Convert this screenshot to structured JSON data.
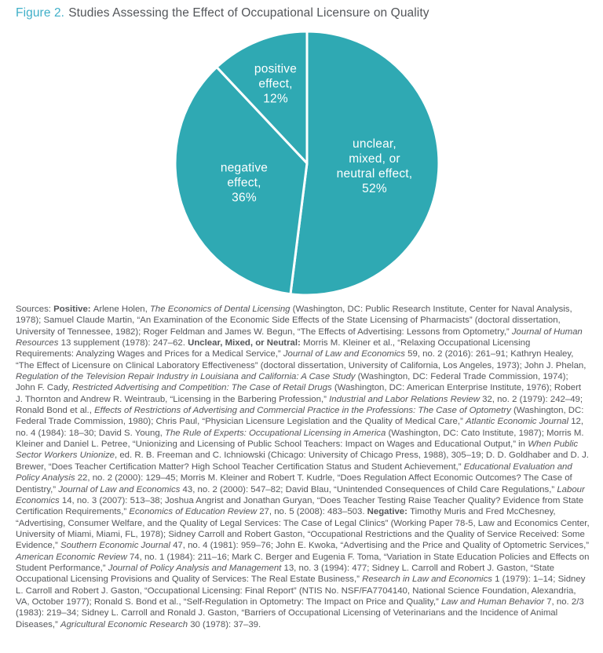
{
  "title": {
    "prefix": "Figure 2.",
    "rest": "Studies Assessing the Effect of Occupational Licensure on Quality"
  },
  "colors": {
    "title_prefix": "#3fafc8",
    "title_text": "#53565a",
    "body_text": "#54565a",
    "pie_fill": "#2fa9b3",
    "pie_separator": "#ffffff",
    "pie_label_text": "#ffffff"
  },
  "chart_data": {
    "type": "pie",
    "title": "Studies Assessing the Effect of Occupational Licensure on Quality",
    "start_angle_deg": 0,
    "direction": "clockwise",
    "fill": "#2fa9b3",
    "separator": "#ffffff",
    "legend_position": "none",
    "slices": [
      {
        "label": "unclear, mixed, or neutral effect",
        "value": 52,
        "display": "unclear,\nmixed, or\nneutral effect,\n52%"
      },
      {
        "label": "negative effect",
        "value": 36,
        "display": "negative\neffect,\n36%"
      },
      {
        "label": "positive effect",
        "value": 12,
        "display": "positive\neffect,\n12%"
      }
    ]
  },
  "sources": {
    "segments": [
      {
        "s": "n",
        "t": "Sources: "
      },
      {
        "s": "b",
        "t": "Positive: "
      },
      {
        "s": "n",
        "t": "Arlene Holen, "
      },
      {
        "s": "i",
        "t": "The Economics of Dental Licensing"
      },
      {
        "s": "n",
        "t": " (Washington, DC: Public Research Institute, Center for Naval Analysis, 1978); Samuel Claude Martin, “An Examination of the Economic Side Effects of the State Licensing of Pharmacists” (doctoral dissertation, University of Tennessee, 1982); Roger Feldman and James W. Begun, “The Effects of Advertising: Lessons from Optometry,” "
      },
      {
        "s": "i",
        "t": "Journal of Human Resources"
      },
      {
        "s": "n",
        "t": " 13 supplement (1978): 247–62. "
      },
      {
        "s": "b",
        "t": "Unclear, Mixed, or Neutral: "
      },
      {
        "s": "n",
        "t": "Morris M. Kleiner et al., “Relaxing Occupational Licensing Requirements: Analyzing Wages and Prices for a Medical Service,” "
      },
      {
        "s": "i",
        "t": "Journal of Law and Economics"
      },
      {
        "s": "n",
        "t": " 59, no. 2 (2016): 261–91; Kathryn Healey, “The Effect of Licensure on Clinical Laboratory Effectiveness” (doctoral dissertation, University of California, Los Angeles, 1973); John J. Phelan, "
      },
      {
        "s": "i",
        "t": "Regulation of the Television Repair Industry in Louisiana and California: A Case Study"
      },
      {
        "s": "n",
        "t": " (Washington, DC: Federal Trade Commission, 1974); John F. Cady, "
      },
      {
        "s": "i",
        "t": "Restricted Advertising and Competition: The Case of Retail Drugs"
      },
      {
        "s": "n",
        "t": " (Washington, DC: American Enterprise Institute, 1976); Robert J. Thornton and Andrew R. Weintraub, “Licensing in the Barbering Profession,” "
      },
      {
        "s": "i",
        "t": "Industrial and Labor Relations Review"
      },
      {
        "s": "n",
        "t": " 32, no. 2 (1979): 242–49; Ronald Bond et al., "
      },
      {
        "s": "i",
        "t": "Effects of Restrictions of Advertising and Commercial Practice in the Professions: The Case of Optometry"
      },
      {
        "s": "n",
        "t": " (Washington, DC: Federal Trade Commission, 1980); Chris Paul, “Physician Licensure Legislation and the Quality of Medical Care,” "
      },
      {
        "s": "i",
        "t": "Atlantic Economic Journal"
      },
      {
        "s": "n",
        "t": " 12, no. 4 (1984): 18–30; David S. Young, "
      },
      {
        "s": "i",
        "t": "The Rule of Experts: Occupational Licensing in America"
      },
      {
        "s": "n",
        "t": " (Washington, DC: Cato Institute, 1987); Morris M. Kleiner and Daniel L. Petree, “Unionizing and Licensing of Public School Teachers: Impact on Wages and Educational Output,” in "
      },
      {
        "s": "i",
        "t": "When Public Sector Workers Unionize"
      },
      {
        "s": "n",
        "t": ", ed. R. B. Freeman and C. Ichniowski (Chicago: University of Chicago Press, 1988), 305–19; D. D. Goldhaber and D. J. Brewer, “Does Teacher Certification Matter? High School Teacher Certification Status and Student Achievement,” "
      },
      {
        "s": "i",
        "t": "Educational Evaluation and Policy Analysis"
      },
      {
        "s": "n",
        "t": " 22, no. 2 (2000): 129–45; Morris M. Kleiner and Robert T. Kudrle, “Does Regulation Affect Economic Outcomes? The Case of Dentistry,” "
      },
      {
        "s": "i",
        "t": "Journal of Law and Economics"
      },
      {
        "s": "n",
        "t": " 43, no. 2 (2000): 547–82; David Blau, “Unintended Consequences of Child Care Regulations,” "
      },
      {
        "s": "i",
        "t": "Labour Economics"
      },
      {
        "s": "n",
        "t": " 14, no. 3 (2007): 513–38; Joshua Angrist and Jonathan Guryan, “Does Teacher Testing Raise Teacher Quality? Evidence from State Certification Requirements,” "
      },
      {
        "s": "i",
        "t": "Economics of Education Review"
      },
      {
        "s": "n",
        "t": " 27, no. 5 (2008): 483–503. "
      },
      {
        "s": "b",
        "t": "Negative: "
      },
      {
        "s": "n",
        "t": "Timothy Muris and Fred McChesney, “Advertising, Consumer Welfare, and the Quality of Legal Services: The Case of Legal Clinics” (Working Paper 78-5, Law and Economics Center, University of Miami, Miami, FL, 1978); Sidney Carroll and Robert Gaston, “Occupational Restrictions and the Quality of Service Received: Some Evidence,” "
      },
      {
        "s": "i",
        "t": "Southern Economic Journal"
      },
      {
        "s": "n",
        "t": " 47, no. 4 (1981): 959–76; John E. Kwoka, “Advertising and the Price and Quality of Optometric Services,” "
      },
      {
        "s": "i",
        "t": "American Economic Review"
      },
      {
        "s": "n",
        "t": " 74, no. 1 (1984): 211–16; Mark C. Berger and Eugenia F. Toma, “Variation in State Education Policies and Effects on Student Performance,” "
      },
      {
        "s": "i",
        "t": "Journal of Policy Analysis and Management"
      },
      {
        "s": "n",
        "t": " 13, no. 3 (1994): 477; Sidney L. Carroll and Robert J. Gaston, “State Occupational Licensing Provisions and Quality of Services: The Real Estate Business,” "
      },
      {
        "s": "i",
        "t": "Research in Law and Economics"
      },
      {
        "s": "n",
        "t": " 1 (1979): 1–14; Sidney L. Carroll and Robert J. Gaston, “Occupational Licensing: Final Report” (NTIS No. NSF/FA7704140, National Science Foundation, Alexandria, VA, October 1977); Ronald S. Bond et al., “Self-Regulation in Optometry: The Impact on Price and Quality,” "
      },
      {
        "s": "i",
        "t": "Law and Human Behavior"
      },
      {
        "s": "n",
        "t": " 7, no. 2/3 (1983): 219–34; Sidney L. Carroll and Ronald J. Gaston, “Barriers of Occupational Licensing of Veterinarians and the Incidence of Animal Diseases,” "
      },
      {
        "s": "i",
        "t": "Agricultural Economic Research"
      },
      {
        "s": "n",
        "t": " 30 (1978): 37–39."
      }
    ]
  }
}
